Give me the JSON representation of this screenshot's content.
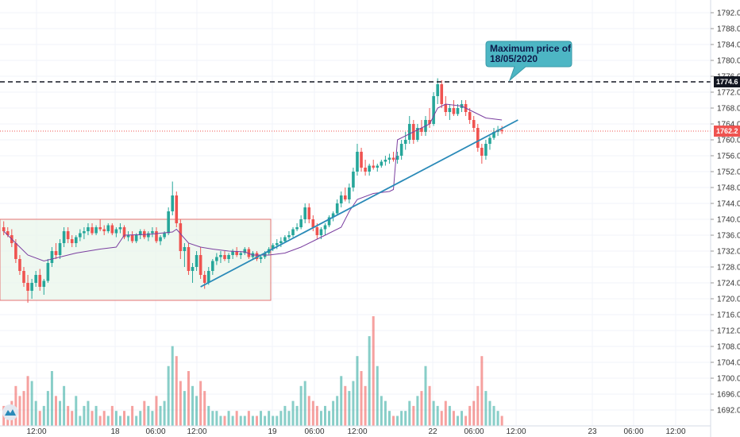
{
  "chart_data": {
    "type": "candlestick",
    "price_axis": {
      "ticks": [
        "1792.0",
        "1788.0",
        "1784.0",
        "1780.0",
        "1776.0",
        "1772.0",
        "1768.0",
        "1764.0",
        "1760.0",
        "1756.0",
        "1752.0",
        "1748.0",
        "1744.0",
        "1740.0",
        "1736.0",
        "1732.0",
        "1728.0",
        "1724.0",
        "1720.0",
        "1716.0",
        "1712.0",
        "1708.0",
        "1704.0",
        "1700.0",
        "1696.0",
        "1692.0"
      ],
      "range": [
        1690,
        1794
      ]
    },
    "time_axis": {
      "ticks": [
        "12:00",
        "18",
        "06:00",
        "12:00",
        "19",
        "06:00",
        "12:00",
        "22",
        "06:00",
        "12:00",
        "23",
        "06:00",
        "12:00"
      ]
    },
    "last_price": {
      "value": 1762.2,
      "label": "1762.2",
      "color": "#ef5350"
    },
    "max_level": {
      "value": 1774.6,
      "label": "1774.6",
      "color": "#131722"
    },
    "callout": {
      "line1": "Maximum price of",
      "line2": "18/05/2020"
    },
    "range_box": {
      "top": 1740,
      "bottom": 1719.6
    },
    "trendline": {
      "from": {
        "bar": 49,
        "price": 1723.0
      },
      "to": {
        "bar": 128,
        "price": 1765.0
      }
    },
    "colors": {
      "up": "#26a69a",
      "down": "#ef5350",
      "vwap": "#7b3fa0",
      "trend": "#2a8ab8",
      "box_fill": "#e8f5e9",
      "box_border": "#e57373",
      "grid": "#f0f3fa",
      "callout_fill": "#4db6c4"
    },
    "candles": [
      [
        1738.0,
        1739.5,
        1736.0,
        1737.0
      ],
      [
        1737.0,
        1738.0,
        1735.5,
        1736.0
      ],
      [
        1736.0,
        1737.5,
        1733.0,
        1734.0
      ],
      [
        1734.0,
        1735.0,
        1729.0,
        1730.0
      ],
      [
        1730.0,
        1731.0,
        1726.0,
        1727.0
      ],
      [
        1727.0,
        1728.0,
        1723.0,
        1724.0
      ],
      [
        1724.0,
        1726.0,
        1719.0,
        1722.0
      ],
      [
        1722.0,
        1725.0,
        1720.0,
        1724.0
      ],
      [
        1724.0,
        1727.0,
        1723.0,
        1726.0
      ],
      [
        1726.0,
        1727.5,
        1722.0,
        1723.0
      ],
      [
        1723.0,
        1725.0,
        1721.0,
        1724.5
      ],
      [
        1724.5,
        1730.0,
        1724.0,
        1729.0
      ],
      [
        1729.0,
        1733.0,
        1728.0,
        1732.0
      ],
      [
        1732.0,
        1734.0,
        1730.0,
        1731.0
      ],
      [
        1731.0,
        1735.0,
        1730.0,
        1734.0
      ],
      [
        1734.0,
        1738.0,
        1733.0,
        1737.0
      ],
      [
        1737.0,
        1738.0,
        1734.0,
        1735.0
      ],
      [
        1735.0,
        1736.0,
        1733.0,
        1734.0
      ],
      [
        1734.0,
        1736.0,
        1733.0,
        1735.5
      ],
      [
        1735.5,
        1737.5,
        1734.5,
        1736.5
      ],
      [
        1736.5,
        1738.0,
        1735.0,
        1737.0
      ],
      [
        1737.0,
        1739.0,
        1736.0,
        1738.0
      ],
      [
        1738.0,
        1739.0,
        1736.0,
        1736.5
      ],
      [
        1736.5,
        1738.5,
        1736.0,
        1738.0
      ],
      [
        1738.0,
        1740.0,
        1737.0,
        1737.5
      ],
      [
        1737.5,
        1738.5,
        1736.0,
        1737.0
      ],
      [
        1737.0,
        1739.0,
        1736.5,
        1738.5
      ],
      [
        1738.5,
        1739.0,
        1736.0,
        1736.5
      ],
      [
        1736.5,
        1738.0,
        1735.5,
        1737.5
      ],
      [
        1737.5,
        1739.0,
        1736.5,
        1738.0
      ],
      [
        1738.0,
        1738.5,
        1735.0,
        1735.5
      ],
      [
        1735.5,
        1737.0,
        1734.5,
        1736.0
      ],
      [
        1736.0,
        1737.0,
        1734.0,
        1734.5
      ],
      [
        1734.5,
        1736.5,
        1734.0,
        1736.0
      ],
      [
        1736.0,
        1737.5,
        1735.0,
        1737.0
      ],
      [
        1737.0,
        1737.5,
        1735.0,
        1735.5
      ],
      [
        1735.5,
        1737.0,
        1734.5,
        1736.5
      ],
      [
        1736.5,
        1738.0,
        1735.5,
        1737.0
      ],
      [
        1737.0,
        1738.0,
        1734.0,
        1734.5
      ],
      [
        1734.5,
        1736.0,
        1733.5,
        1735.5
      ],
      [
        1735.5,
        1737.0,
        1735.0,
        1736.5
      ],
      [
        1736.5,
        1743.0,
        1736.0,
        1742.0
      ],
      [
        1742.0,
        1749.5,
        1741.0,
        1746.0
      ],
      [
        1746.0,
        1747.0,
        1738.0,
        1739.0
      ],
      [
        1739.0,
        1740.0,
        1730.0,
        1732.0
      ],
      [
        1732.0,
        1734.0,
        1728.0,
        1733.0
      ],
      [
        1733.0,
        1734.0,
        1726.0,
        1727.0
      ],
      [
        1727.0,
        1729.0,
        1724.0,
        1728.0
      ],
      [
        1728.0,
        1732.0,
        1727.0,
        1731.0
      ],
      [
        1731.0,
        1733.0,
        1725.0,
        1726.0
      ],
      [
        1726.0,
        1727.0,
        1722.5,
        1724.0
      ],
      [
        1724.0,
        1728.0,
        1723.5,
        1727.0
      ],
      [
        1727.0,
        1730.0,
        1726.0,
        1729.5
      ],
      [
        1729.5,
        1731.5,
        1728.5,
        1730.5
      ],
      [
        1730.5,
        1732.0,
        1729.0,
        1731.0
      ],
      [
        1731.0,
        1732.0,
        1729.5,
        1730.0
      ],
      [
        1730.0,
        1731.5,
        1729.0,
        1731.0
      ],
      [
        1731.0,
        1732.5,
        1730.0,
        1732.0
      ],
      [
        1732.0,
        1733.0,
        1730.5,
        1731.0
      ],
      [
        1731.0,
        1732.0,
        1730.0,
        1731.5
      ],
      [
        1731.5,
        1733.0,
        1731.0,
        1732.5
      ],
      [
        1732.5,
        1733.0,
        1730.0,
        1730.5
      ],
      [
        1730.5,
        1732.0,
        1730.0,
        1731.5
      ],
      [
        1731.5,
        1732.0,
        1729.5,
        1730.0
      ],
      [
        1730.0,
        1731.0,
        1729.0,
        1730.5
      ],
      [
        1730.5,
        1732.0,
        1730.0,
        1731.5
      ],
      [
        1731.5,
        1733.0,
        1731.0,
        1732.5
      ],
      [
        1732.5,
        1734.0,
        1732.0,
        1733.5
      ],
      [
        1733.5,
        1735.0,
        1732.5,
        1734.0
      ],
      [
        1734.0,
        1735.5,
        1733.0,
        1734.5
      ],
      [
        1734.5,
        1736.0,
        1734.0,
        1735.5
      ],
      [
        1735.5,
        1737.0,
        1735.0,
        1736.0
      ],
      [
        1736.0,
        1738.0,
        1735.5,
        1737.5
      ],
      [
        1737.5,
        1739.0,
        1737.0,
        1738.0
      ],
      [
        1738.0,
        1741.0,
        1737.5,
        1740.0
      ],
      [
        1740.0,
        1744.0,
        1739.0,
        1743.0
      ],
      [
        1743.0,
        1744.0,
        1739.0,
        1740.0
      ],
      [
        1740.0,
        1741.0,
        1737.0,
        1738.0
      ],
      [
        1738.0,
        1739.0,
        1735.0,
        1736.0
      ],
      [
        1736.0,
        1738.0,
        1735.0,
        1737.5
      ],
      [
        1737.5,
        1739.0,
        1736.0,
        1738.5
      ],
      [
        1738.5,
        1741.0,
        1738.0,
        1740.5
      ],
      [
        1740.5,
        1742.0,
        1739.5,
        1741.5
      ],
      [
        1741.5,
        1745.0,
        1741.0,
        1744.0
      ],
      [
        1744.0,
        1747.0,
        1743.0,
        1746.0
      ],
      [
        1746.0,
        1748.0,
        1744.5,
        1745.0
      ],
      [
        1745.0,
        1749.0,
        1744.0,
        1748.0
      ],
      [
        1748.0,
        1753.0,
        1747.0,
        1752.0
      ],
      [
        1752.0,
        1759.0,
        1751.0,
        1757.0
      ],
      [
        1757.0,
        1758.0,
        1752.0,
        1753.0
      ],
      [
        1753.0,
        1755.0,
        1751.0,
        1752.0
      ],
      [
        1752.0,
        1754.0,
        1751.0,
        1753.5
      ],
      [
        1753.5,
        1755.0,
        1752.5,
        1753.0
      ],
      [
        1753.0,
        1754.0,
        1752.0,
        1753.5
      ],
      [
        1753.5,
        1755.0,
        1753.0,
        1754.5
      ],
      [
        1754.5,
        1756.0,
        1753.5,
        1755.0
      ],
      [
        1755.0,
        1756.5,
        1754.0,
        1755.5
      ],
      [
        1755.5,
        1757.0,
        1754.5,
        1755.0
      ],
      [
        1755.0,
        1757.0,
        1754.0,
        1756.0
      ],
      [
        1756.0,
        1760.0,
        1755.0,
        1759.0
      ],
      [
        1759.0,
        1762.0,
        1757.5,
        1760.0
      ],
      [
        1760.0,
        1766.0,
        1759.0,
        1764.0
      ],
      [
        1764.0,
        1765.0,
        1759.0,
        1760.0
      ],
      [
        1760.0,
        1764.0,
        1759.5,
        1763.0
      ],
      [
        1763.0,
        1765.0,
        1761.0,
        1762.0
      ],
      [
        1762.0,
        1766.0,
        1761.0,
        1765.0
      ],
      [
        1765.0,
        1768.0,
        1763.0,
        1764.0
      ],
      [
        1764.0,
        1772.0,
        1763.5,
        1771.0
      ],
      [
        1771.0,
        1775.5,
        1769.0,
        1774.0
      ],
      [
        1774.0,
        1775.0,
        1768.0,
        1769.0
      ],
      [
        1769.0,
        1771.0,
        1766.0,
        1767.0
      ],
      [
        1767.0,
        1769.0,
        1765.0,
        1768.0
      ],
      [
        1768.0,
        1770.0,
        1766.0,
        1766.5
      ],
      [
        1766.5,
        1769.0,
        1766.0,
        1768.0
      ],
      [
        1768.0,
        1770.0,
        1767.0,
        1769.0
      ],
      [
        1769.0,
        1770.0,
        1766.0,
        1767.0
      ],
      [
        1767.0,
        1768.0,
        1764.0,
        1765.0
      ],
      [
        1765.0,
        1766.0,
        1762.0,
        1763.0
      ],
      [
        1763.0,
        1764.0,
        1757.0,
        1758.0
      ],
      [
        1758.0,
        1759.0,
        1754.0,
        1756.0
      ],
      [
        1756.0,
        1760.0,
        1755.0,
        1759.0
      ],
      [
        1759.0,
        1761.0,
        1757.5,
        1760.5
      ],
      [
        1760.5,
        1763.0,
        1760.0,
        1762.0
      ],
      [
        1762.0,
        1763.5,
        1761.0,
        1762.5
      ],
      [
        1762.5,
        1763.5,
        1761.5,
        1762.2
      ]
    ],
    "vwap": [
      [
        0,
        1737.0
      ],
      [
        3,
        1734.0
      ],
      [
        6,
        1731.0
      ],
      [
        10,
        1729.5
      ],
      [
        14,
        1730.5
      ],
      [
        18,
        1731.5
      ],
      [
        24,
        1732.5
      ],
      [
        28,
        1733.0
      ],
      [
        30,
        1736.0
      ],
      [
        36,
        1736.2
      ],
      [
        42,
        1736.8
      ],
      [
        43,
        1737.5
      ],
      [
        46,
        1734.0
      ],
      [
        49,
        1733.0
      ],
      [
        52,
        1732.5
      ],
      [
        56,
        1732.0
      ],
      [
        60,
        1731.8
      ],
      [
        62,
        1731.0
      ],
      [
        66,
        1731.0
      ],
      [
        70,
        1731.5
      ],
      [
        74,
        1733.0
      ],
      [
        78,
        1735.0
      ],
      [
        80,
        1736.0
      ],
      [
        84,
        1738.0
      ],
      [
        86,
        1742.0
      ],
      [
        88,
        1745.0
      ],
      [
        92,
        1746.5
      ],
      [
        96,
        1747.0
      ],
      [
        97,
        1747.5
      ],
      [
        98,
        1760.0
      ],
      [
        102,
        1762.0
      ],
      [
        106,
        1764.0
      ],
      [
        108,
        1768.0
      ],
      [
        110,
        1769.0
      ],
      [
        114,
        1768.5
      ],
      [
        117,
        1767.0
      ],
      [
        120,
        1765.5
      ],
      [
        124,
        1765.0
      ]
    ],
    "volume": [
      4,
      3,
      5,
      8,
      6,
      7,
      10,
      9,
      5,
      3,
      4,
      7,
      11,
      6,
      5,
      8,
      4,
      3,
      6,
      2,
      4,
      5,
      3,
      4,
      2,
      3,
      2,
      4,
      3,
      2,
      3,
      2,
      4,
      2,
      3,
      5,
      4,
      3,
      6,
      4,
      5,
      12,
      16,
      14,
      9,
      7,
      11,
      8,
      6,
      9,
      7,
      4,
      3,
      3,
      2,
      2,
      3,
      2,
      3,
      2,
      2,
      3,
      2,
      2,
      3,
      2,
      3,
      2,
      2,
      3,
      4,
      3,
      5,
      4,
      8,
      9,
      6,
      5,
      4,
      3,
      4,
      3,
      5,
      6,
      10,
      8,
      7,
      9,
      14,
      11,
      8,
      18,
      22,
      12,
      6,
      5,
      3,
      2,
      2,
      3,
      3,
      5,
      4,
      6,
      7,
      12,
      8,
      5,
      4,
      3,
      5,
      4,
      3,
      2,
      3,
      2,
      4,
      5,
      8,
      14,
      7,
      5,
      4,
      3,
      2
    ]
  }
}
